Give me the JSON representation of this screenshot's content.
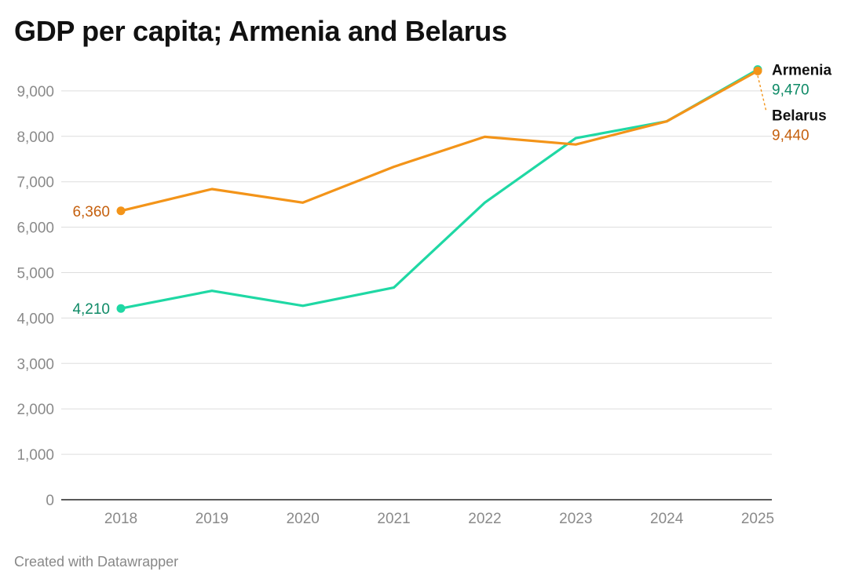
{
  "title": "GDP per capita; Armenia and Belarus",
  "footer": "Created with Datawrapper",
  "chart_data": {
    "type": "line",
    "title": "GDP per capita; Armenia and Belarus",
    "xlabel": "",
    "ylabel": "",
    "x": [
      2018,
      2019,
      2020,
      2021,
      2022,
      2023,
      2024,
      2025
    ],
    "x_tick_labels": [
      "2018",
      "2019",
      "2020",
      "2021",
      "2022",
      "2023",
      "2024",
      "2025"
    ],
    "ylim": [
      0,
      9000
    ],
    "y_ticks": [
      0,
      1000,
      2000,
      3000,
      4000,
      5000,
      6000,
      7000,
      8000,
      9000
    ],
    "y_tick_labels": [
      "0",
      "1,000",
      "2,000",
      "3,000",
      "4,000",
      "5,000",
      "6,000",
      "7,000",
      "8,000",
      "9,000"
    ],
    "grid": true,
    "series": [
      {
        "name": "Armenia",
        "color": "#1fd8a4",
        "label_color": "#0e8a66",
        "values": [
          4210,
          4600,
          4270,
          4670,
          6540,
          7960,
          8330,
          9470
        ],
        "start_label": "4,210",
        "end_label": "9,470"
      },
      {
        "name": "Belarus",
        "color": "#f39419",
        "label_color": "#c5600e",
        "values": [
          6360,
          6840,
          6540,
          7330,
          7990,
          7820,
          8330,
          9440
        ],
        "start_label": "6,360",
        "end_label": "9,440"
      }
    ]
  }
}
